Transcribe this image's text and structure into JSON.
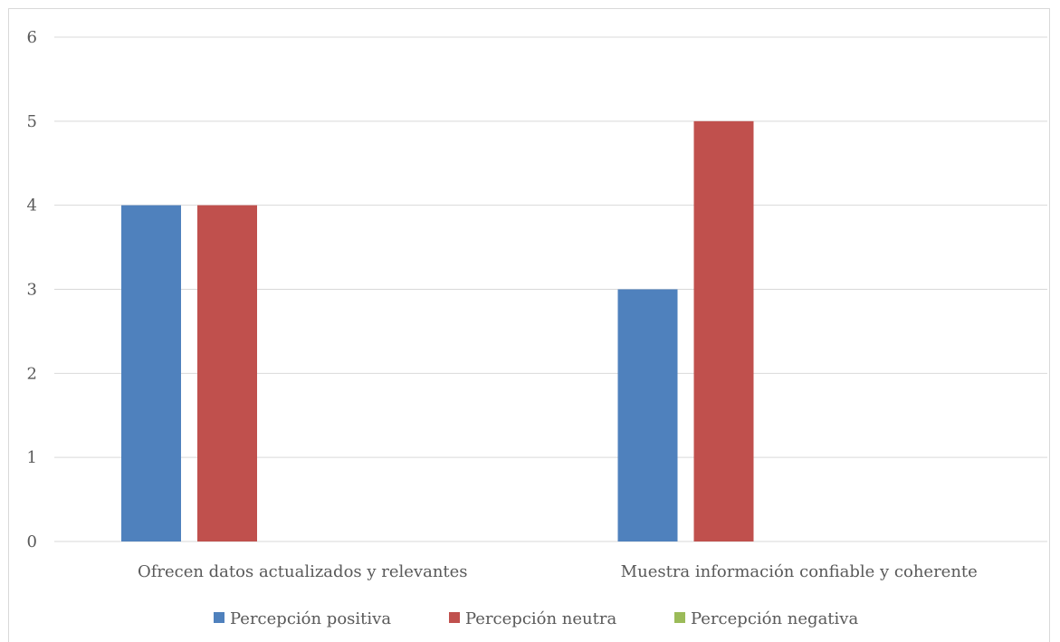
{
  "chart_data": {
    "type": "bar",
    "title": "",
    "xlabel": "",
    "ylabel": "",
    "categories": [
      "Ofrecen datos actualizados y relevantes",
      "Muestra información confiable y coherente"
    ],
    "series": [
      {
        "name": "Percepción positiva",
        "color": "#4f81bd",
        "values": [
          4,
          3
        ]
      },
      {
        "name": "Percepción neutra",
        "color": "#c0504d",
        "values": [
          4,
          5
        ]
      },
      {
        "name": "Percepción negativa",
        "color": "#9bbb59",
        "values": [
          0,
          0
        ]
      }
    ],
    "ylim": [
      0,
      6
    ],
    "yticks": [
      "0",
      "1",
      "2",
      "3",
      "4",
      "5",
      "6"
    ],
    "grid": true,
    "legend_position": "bottom"
  }
}
